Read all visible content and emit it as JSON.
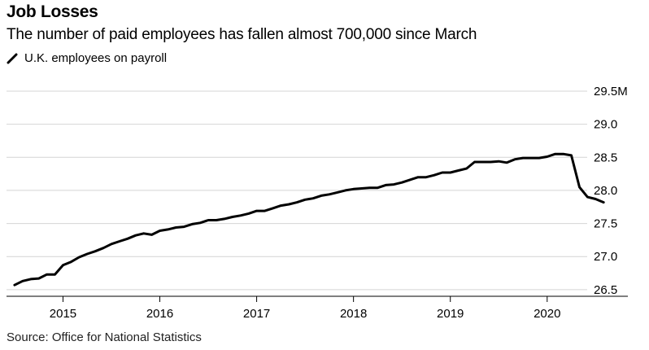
{
  "header": {
    "title": "Job Losses",
    "subtitle": "The number of paid employees has fallen almost 700,000 since March"
  },
  "legend": {
    "label": "U.K. employees on payroll",
    "color": "#000000"
  },
  "footer": {
    "source": "Source: Office for National Statistics"
  },
  "chart_data": {
    "type": "line",
    "title": "Job Losses",
    "subtitle": "The number of paid employees has fallen almost 700,000 since March",
    "xlabel": "",
    "ylabel": "",
    "ylim": [
      26.4,
      29.5
    ],
    "xlim": [
      "2014-06",
      "2020-11"
    ],
    "grid": true,
    "legend_position": "top-left",
    "y_ticks": [
      {
        "value": 29.5,
        "label": "29.5M"
      },
      {
        "value": 29.0,
        "label": "29.0"
      },
      {
        "value": 28.5,
        "label": "28.5"
      },
      {
        "value": 28.0,
        "label": "28.0"
      },
      {
        "value": 27.5,
        "label": "27.5"
      },
      {
        "value": 27.0,
        "label": "27.0"
      },
      {
        "value": 26.5,
        "label": "26.5"
      }
    ],
    "x_ticks": [
      "2015",
      "2016",
      "2017",
      "2018",
      "2019",
      "2020"
    ],
    "series": [
      {
        "name": "U.K. employees on payroll",
        "color": "#000000",
        "x": [
          "2014-07",
          "2014-08",
          "2014-09",
          "2014-10",
          "2014-11",
          "2014-12",
          "2015-01",
          "2015-02",
          "2015-03",
          "2015-04",
          "2015-05",
          "2015-06",
          "2015-07",
          "2015-08",
          "2015-09",
          "2015-10",
          "2015-11",
          "2015-12",
          "2016-01",
          "2016-02",
          "2016-03",
          "2016-04",
          "2016-05",
          "2016-06",
          "2016-07",
          "2016-08",
          "2016-09",
          "2016-10",
          "2016-11",
          "2016-12",
          "2017-01",
          "2017-02",
          "2017-03",
          "2017-04",
          "2017-05",
          "2017-06",
          "2017-07",
          "2017-08",
          "2017-09",
          "2017-10",
          "2017-11",
          "2017-12",
          "2018-01",
          "2018-02",
          "2018-03",
          "2018-04",
          "2018-05",
          "2018-06",
          "2018-07",
          "2018-08",
          "2018-09",
          "2018-10",
          "2018-11",
          "2018-12",
          "2019-01",
          "2019-02",
          "2019-03",
          "2019-04",
          "2019-05",
          "2019-06",
          "2019-07",
          "2019-08",
          "2019-09",
          "2019-10",
          "2019-11",
          "2019-12",
          "2020-01",
          "2020-02",
          "2020-03",
          "2020-04",
          "2020-05",
          "2020-06",
          "2020-07",
          "2020-08"
        ],
        "values": [
          26.57,
          26.63,
          26.66,
          26.67,
          26.73,
          26.73,
          26.87,
          26.92,
          26.99,
          27.04,
          27.08,
          27.13,
          27.19,
          27.23,
          27.27,
          27.32,
          27.35,
          27.33,
          27.39,
          27.41,
          27.44,
          27.45,
          27.49,
          27.51,
          27.55,
          27.55,
          27.57,
          27.6,
          27.62,
          27.65,
          27.69,
          27.69,
          27.73,
          27.77,
          27.79,
          27.82,
          27.86,
          27.88,
          27.92,
          27.94,
          27.97,
          28.0,
          28.02,
          28.03,
          28.04,
          28.04,
          28.08,
          28.09,
          28.12,
          28.16,
          28.2,
          28.2,
          28.23,
          28.27,
          28.27,
          28.3,
          28.33,
          28.43,
          28.43,
          28.43,
          28.44,
          28.42,
          28.47,
          28.49,
          28.49,
          28.49,
          28.51,
          28.55,
          28.55,
          28.53,
          28.05,
          27.9,
          27.87,
          27.82
        ]
      }
    ]
  }
}
